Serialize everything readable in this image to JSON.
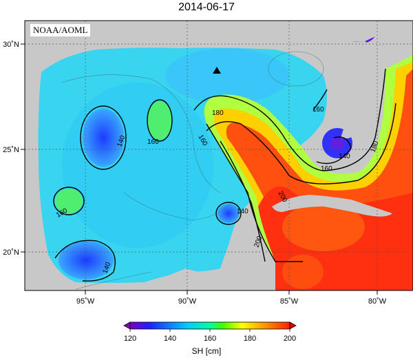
{
  "title": "2014-06-17",
  "credit": "NOAA/AOML",
  "colors": {
    "land": "#c8c8c8",
    "ocean_low": "#8000ff",
    "ocean_mid": "#00e0e0",
    "ocean_high": "#ff2000"
  },
  "axes": {
    "lon_ticks": [
      "95˚W",
      "90˚W",
      "85˚W",
      "80˚W"
    ],
    "lat_ticks": [
      "30˚N",
      "25˚N",
      "20˚N"
    ]
  },
  "markers": [
    {
      "name": "buoy-marker",
      "symbol": "triangle",
      "lon": -88.3,
      "lat": 28.8
    }
  ],
  "contour_labels": [
    "140",
    "140",
    "140",
    "140",
    "160",
    "160",
    "160",
    "160",
    "160",
    "180",
    "180",
    "200",
    "200"
  ],
  "colorbar": {
    "ticks": [
      "120",
      "140",
      "160",
      "180",
      "200"
    ],
    "range": [
      120,
      200
    ],
    "label": "SH [cm]",
    "palette": [
      "#8000c0",
      "#2020ff",
      "#00c8ff",
      "#00ffa0",
      "#40ff00",
      "#ffff00",
      "#ff9000",
      "#ff2000",
      "#e00000"
    ]
  }
}
